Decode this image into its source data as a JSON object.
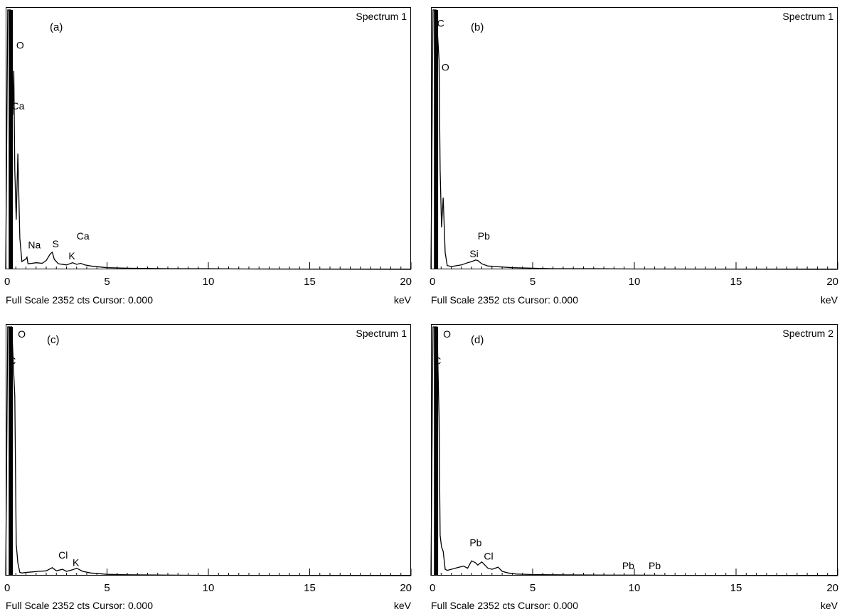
{
  "chart_data": [
    {
      "type": "line",
      "panel_label": "(a)",
      "spectrum_label": "Spectrum 1",
      "footer": "Full Scale 2352 cts Cursor: 0.000",
      "xlabel": "keV",
      "xlim": [
        0,
        20
      ],
      "ylim": [
        0,
        2352
      ],
      "x_ticks": [
        "0",
        "5",
        "10",
        "15",
        "20"
      ],
      "series": [
        {
          "x": [
            0,
            0.1,
            0.18,
            0.25,
            0.3,
            0.35,
            0.4,
            0.45,
            0.52,
            0.6,
            0.7,
            0.8,
            1.0,
            1.05,
            1.1,
            1.3,
            1.5,
            1.8,
            2.0,
            2.2,
            2.3,
            2.4,
            2.6,
            3.0,
            3.3,
            3.5,
            3.7,
            3.9,
            4.2,
            5,
            6,
            8,
            10,
            12,
            15,
            20
          ],
          "y": [
            0,
            2352,
            2352,
            2352,
            2300,
            1400,
            1800,
            900,
            450,
            1050,
            280,
            70,
            95,
            110,
            50,
            55,
            60,
            55,
            80,
            140,
            155,
            90,
            50,
            40,
            60,
            45,
            55,
            40,
            30,
            15,
            10,
            6,
            5,
            3,
            2,
            0
          ]
        }
      ],
      "annotations": [
        {
          "text": "O",
          "x": 0.52,
          "y": 2000
        },
        {
          "text": "Ca",
          "x": 0.3,
          "y": 1450
        },
        {
          "text": "Na",
          "x": 1.1,
          "y": 190
        },
        {
          "text": "S",
          "x": 2.3,
          "y": 200
        },
        {
          "text": "Ca",
          "x": 3.5,
          "y": 270
        },
        {
          "text": "K",
          "x": 3.1,
          "y": 90
        }
      ]
    },
    {
      "type": "line",
      "panel_label": "(b)",
      "spectrum_label": "Spectrum 1",
      "footer": "Full Scale 2352 cts Cursor: 0.000",
      "xlabel": "keV",
      "xlim": [
        0,
        20
      ],
      "ylim": [
        0,
        2352
      ],
      "x_ticks": [
        "0",
        "5",
        "10",
        "15",
        "20"
      ],
      "series": [
        {
          "x": [
            0,
            0.1,
            0.18,
            0.25,
            0.3,
            0.4,
            0.45,
            0.52,
            0.6,
            0.7,
            0.8,
            1.0,
            1.3,
            1.5,
            1.8,
            2.0,
            2.2,
            2.3,
            2.5,
            2.8,
            3.2,
            4,
            5,
            6,
            8,
            10,
            15,
            20
          ],
          "y": [
            0,
            2352,
            2352,
            2352,
            2200,
            1900,
            900,
            380,
            650,
            150,
            35,
            25,
            35,
            40,
            60,
            70,
            85,
            80,
            50,
            30,
            25,
            15,
            10,
            6,
            5,
            3,
            2,
            0
          ]
        }
      ],
      "annotations": [
        {
          "text": "C",
          "x": 0.3,
          "y": 2200
        },
        {
          "text": "O",
          "x": 0.52,
          "y": 1800
        },
        {
          "text": "Si",
          "x": 1.9,
          "y": 110
        },
        {
          "text": "Pb",
          "x": 2.3,
          "y": 270
        }
      ]
    },
    {
      "type": "line",
      "panel_label": "(c)",
      "spectrum_label": "Spectrum 1",
      "footer": "Full Scale 2352 cts Cursor: 0.000",
      "xlabel": "keV",
      "xlim": [
        0,
        20
      ],
      "ylim": [
        0,
        2352
      ],
      "x_ticks": [
        "0",
        "5",
        "10",
        "15",
        "20"
      ],
      "series": [
        {
          "x": [
            0,
            0.1,
            0.18,
            0.25,
            0.3,
            0.4,
            0.45,
            0.52,
            0.6,
            0.7,
            0.8,
            1.0,
            1.3,
            1.6,
            2.0,
            2.3,
            2.5,
            2.8,
            3.0,
            3.3,
            3.5,
            3.8,
            4.2,
            5,
            6,
            8,
            10,
            15,
            20
          ],
          "y": [
            0,
            2352,
            2352,
            2352,
            2352,
            1900,
            1700,
            300,
            120,
            30,
            25,
            30,
            35,
            40,
            45,
            75,
            45,
            60,
            40,
            55,
            70,
            40,
            25,
            12,
            8,
            5,
            3,
            2,
            0
          ]
        }
      ],
      "annotations": [
        {
          "text": "O",
          "x": 0.6,
          "y": 2250
        },
        {
          "text": "C",
          "x": 0.15,
          "y": 2000
        },
        {
          "text": "Cl",
          "x": 2.6,
          "y": 160
        },
        {
          "text": "K",
          "x": 3.3,
          "y": 90
        }
      ]
    },
    {
      "type": "line",
      "panel_label": "(d)",
      "spectrum_label": "Spectrum 2",
      "footer": "Full Scale 2352 cts Cursor: 0.000",
      "xlabel": "keV",
      "xlim": [
        0,
        20
      ],
      "ylim": [
        0,
        2352
      ],
      "x_ticks": [
        "0",
        "5",
        "10",
        "15",
        "20"
      ],
      "series": [
        {
          "x": [
            0,
            0.1,
            0.18,
            0.25,
            0.3,
            0.4,
            0.45,
            0.52,
            0.6,
            0.7,
            0.8,
            1.0,
            1.3,
            1.6,
            1.8,
            2.0,
            2.2,
            2.3,
            2.5,
            2.8,
            3.0,
            3.3,
            3.5,
            3.8,
            4.2,
            5,
            6,
            8,
            9,
            10,
            11,
            12,
            15,
            20
          ],
          "y": [
            0,
            2352,
            2352,
            2352,
            2352,
            1500,
            380,
            270,
            230,
            60,
            50,
            60,
            75,
            90,
            70,
            140,
            120,
            100,
            130,
            70,
            60,
            80,
            40,
            25,
            15,
            10,
            8,
            6,
            5,
            5,
            4,
            3,
            2,
            0
          ]
        }
      ],
      "annotations": [
        {
          "text": "O",
          "x": 0.6,
          "y": 2250
        },
        {
          "text": "C",
          "x": 0.15,
          "y": 2000
        },
        {
          "text": "Pb",
          "x": 1.9,
          "y": 280
        },
        {
          "text": "Cl",
          "x": 2.6,
          "y": 150
        },
        {
          "text": "Pb",
          "x": 9.4,
          "y": 60
        },
        {
          "text": "Pb",
          "x": 10.7,
          "y": 60
        }
      ]
    }
  ]
}
